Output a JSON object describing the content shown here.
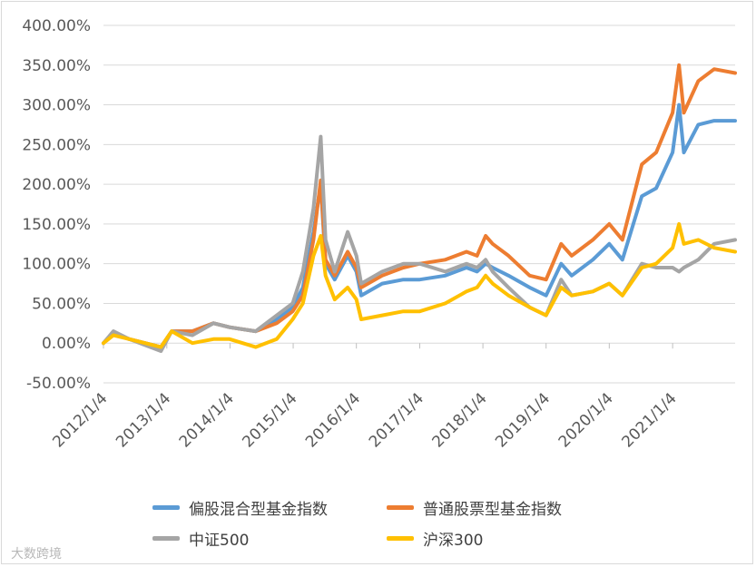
{
  "chart_data": {
    "type": "line",
    "title": "",
    "xlabel": "",
    "ylabel": "",
    "ylim": [
      -50,
      400
    ],
    "y_ticks": [
      "-50.00%",
      "0.00%",
      "50.00%",
      "100.00%",
      "150.00%",
      "200.00%",
      "250.00%",
      "300.00%",
      "350.00%",
      "400.00%"
    ],
    "x_ticks": [
      "2012/1/4",
      "2013/1/4",
      "2014/1/4",
      "2015/1/4",
      "2016/1/4",
      "2017/1/4",
      "2018/1/4",
      "2019/1/4",
      "2020/1/4",
      "2021/1/4"
    ],
    "x_range": [
      "2012/1/4",
      "2021/12/31"
    ],
    "grid": true,
    "legend_position": "bottom",
    "series": [
      {
        "name": "偏股混合型基金指数",
        "color": "#5b9bd5",
        "points": [
          [
            "2012/1/4",
            0
          ],
          [
            "2012/3/1",
            12
          ],
          [
            "2012/6/1",
            5
          ],
          [
            "2012/12/1",
            -5
          ],
          [
            "2013/2/1",
            15
          ],
          [
            "2013/6/1",
            15
          ],
          [
            "2013/10/1",
            25
          ],
          [
            "2014/1/1",
            20
          ],
          [
            "2014/6/1",
            15
          ],
          [
            "2014/10/1",
            30
          ],
          [
            "2015/1/1",
            45
          ],
          [
            "2015/3/1",
            70
          ],
          [
            "2015/5/1",
            140
          ],
          [
            "2015/6/12",
            200
          ],
          [
            "2015/7/10",
            100
          ],
          [
            "2015/9/1",
            80
          ],
          [
            "2015/11/15",
            110
          ],
          [
            "2016/1/4",
            90
          ],
          [
            "2016/2/1",
            60
          ],
          [
            "2016/6/1",
            75
          ],
          [
            "2016/10/1",
            80
          ],
          [
            "2017/1/4",
            80
          ],
          [
            "2017/6/1",
            85
          ],
          [
            "2017/10/1",
            95
          ],
          [
            "2017/12/1",
            90
          ],
          [
            "2018/1/20",
            100
          ],
          [
            "2018/3/1",
            95
          ],
          [
            "2018/6/1",
            85
          ],
          [
            "2018/10/1",
            70
          ],
          [
            "2019/1/4",
            60
          ],
          [
            "2019/4/1",
            100
          ],
          [
            "2019/6/1",
            85
          ],
          [
            "2019/10/1",
            105
          ],
          [
            "2020/1/4",
            125
          ],
          [
            "2020/3/20",
            105
          ],
          [
            "2020/7/10",
            185
          ],
          [
            "2020/10/1",
            195
          ],
          [
            "2021/1/4",
            240
          ],
          [
            "2021/2/10",
            300
          ],
          [
            "2021/3/10",
            240
          ],
          [
            "2021/6/1",
            275
          ],
          [
            "2021/9/1",
            280
          ],
          [
            "2021/12/31",
            280
          ]
        ]
      },
      {
        "name": "普通股票型基金指数",
        "color": "#ed7d31",
        "points": [
          [
            "2012/1/4",
            0
          ],
          [
            "2012/3/1",
            12
          ],
          [
            "2012/6/1",
            5
          ],
          [
            "2012/12/1",
            -5
          ],
          [
            "2013/2/1",
            15
          ],
          [
            "2013/6/1",
            15
          ],
          [
            "2013/10/1",
            25
          ],
          [
            "2014/1/1",
            20
          ],
          [
            "2014/6/1",
            15
          ],
          [
            "2014/10/1",
            25
          ],
          [
            "2015/1/1",
            40
          ],
          [
            "2015/3/1",
            60
          ],
          [
            "2015/5/1",
            130
          ],
          [
            "2015/6/12",
            205
          ],
          [
            "2015/7/10",
            105
          ],
          [
            "2015/9/1",
            85
          ],
          [
            "2015/11/15",
            115
          ],
          [
            "2016/1/4",
            95
          ],
          [
            "2016/2/1",
            70
          ],
          [
            "2016/6/1",
            85
          ],
          [
            "2016/10/1",
            95
          ],
          [
            "2017/1/4",
            100
          ],
          [
            "2017/6/1",
            105
          ],
          [
            "2017/10/1",
            115
          ],
          [
            "2017/12/1",
            110
          ],
          [
            "2018/1/20",
            135
          ],
          [
            "2018/3/1",
            125
          ],
          [
            "2018/6/1",
            110
          ],
          [
            "2018/10/1",
            85
          ],
          [
            "2019/1/4",
            80
          ],
          [
            "2019/4/1",
            125
          ],
          [
            "2019/6/1",
            110
          ],
          [
            "2019/10/1",
            130
          ],
          [
            "2020/1/4",
            150
          ],
          [
            "2020/3/20",
            130
          ],
          [
            "2020/7/10",
            225
          ],
          [
            "2020/10/1",
            240
          ],
          [
            "2021/1/4",
            290
          ],
          [
            "2021/2/10",
            350
          ],
          [
            "2021/3/10",
            290
          ],
          [
            "2021/6/1",
            330
          ],
          [
            "2021/9/1",
            345
          ],
          [
            "2021/12/31",
            340
          ]
        ]
      },
      {
        "name": "中证500",
        "color": "#a5a5a5",
        "points": [
          [
            "2012/1/4",
            0
          ],
          [
            "2012/3/1",
            15
          ],
          [
            "2012/6/1",
            5
          ],
          [
            "2012/12/1",
            -10
          ],
          [
            "2013/2/1",
            15
          ],
          [
            "2013/6/1",
            10
          ],
          [
            "2013/10/1",
            25
          ],
          [
            "2014/1/1",
            20
          ],
          [
            "2014/6/1",
            15
          ],
          [
            "2014/10/1",
            35
          ],
          [
            "2015/1/1",
            50
          ],
          [
            "2015/3/1",
            90
          ],
          [
            "2015/5/1",
            170
          ],
          [
            "2015/6/12",
            260
          ],
          [
            "2015/7/10",
            130
          ],
          [
            "2015/9/1",
            90
          ],
          [
            "2015/11/15",
            140
          ],
          [
            "2016/1/4",
            110
          ],
          [
            "2016/2/1",
            75
          ],
          [
            "2016/6/1",
            90
          ],
          [
            "2016/10/1",
            100
          ],
          [
            "2017/1/4",
            100
          ],
          [
            "2017/6/1",
            90
          ],
          [
            "2017/10/1",
            100
          ],
          [
            "2017/12/1",
            95
          ],
          [
            "2018/1/20",
            105
          ],
          [
            "2018/3/1",
            90
          ],
          [
            "2018/6/1",
            70
          ],
          [
            "2018/10/1",
            45
          ],
          [
            "2019/1/4",
            35
          ],
          [
            "2019/4/1",
            80
          ],
          [
            "2019/6/1",
            60
          ],
          [
            "2019/10/1",
            65
          ],
          [
            "2020/1/4",
            75
          ],
          [
            "2020/3/20",
            60
          ],
          [
            "2020/7/10",
            100
          ],
          [
            "2020/10/1",
            95
          ],
          [
            "2021/1/4",
            95
          ],
          [
            "2021/2/10",
            90
          ],
          [
            "2021/3/10",
            95
          ],
          [
            "2021/6/1",
            105
          ],
          [
            "2021/9/1",
            125
          ],
          [
            "2021/12/31",
            130
          ]
        ]
      },
      {
        "name": "沪深300",
        "color": "#ffc000",
        "points": [
          [
            "2012/1/4",
            0
          ],
          [
            "2012/3/1",
            10
          ],
          [
            "2012/6/1",
            5
          ],
          [
            "2012/12/1",
            -5
          ],
          [
            "2013/2/1",
            15
          ],
          [
            "2013/6/1",
            0
          ],
          [
            "2013/10/1",
            5
          ],
          [
            "2014/1/1",
            5
          ],
          [
            "2014/6/1",
            -5
          ],
          [
            "2014/10/1",
            5
          ],
          [
            "2015/1/1",
            30
          ],
          [
            "2015/3/1",
            50
          ],
          [
            "2015/5/1",
            110
          ],
          [
            "2015/6/12",
            135
          ],
          [
            "2015/7/10",
            85
          ],
          [
            "2015/9/1",
            55
          ],
          [
            "2015/11/15",
            70
          ],
          [
            "2016/1/4",
            55
          ],
          [
            "2016/2/1",
            30
          ],
          [
            "2016/6/1",
            35
          ],
          [
            "2016/10/1",
            40
          ],
          [
            "2017/1/4",
            40
          ],
          [
            "2017/6/1",
            50
          ],
          [
            "2017/10/1",
            65
          ],
          [
            "2017/12/1",
            70
          ],
          [
            "2018/1/20",
            85
          ],
          [
            "2018/3/1",
            75
          ],
          [
            "2018/6/1",
            60
          ],
          [
            "2018/10/1",
            45
          ],
          [
            "2019/1/4",
            35
          ],
          [
            "2019/4/1",
            70
          ],
          [
            "2019/6/1",
            60
          ],
          [
            "2019/10/1",
            65
          ],
          [
            "2020/1/4",
            75
          ],
          [
            "2020/3/20",
            60
          ],
          [
            "2020/7/10",
            95
          ],
          [
            "2020/10/1",
            100
          ],
          [
            "2021/1/4",
            120
          ],
          [
            "2021/2/10",
            150
          ],
          [
            "2021/3/10",
            125
          ],
          [
            "2021/6/1",
            130
          ],
          [
            "2021/9/1",
            120
          ],
          [
            "2021/12/31",
            115
          ]
        ]
      }
    ]
  },
  "watermark": "大数跨境"
}
